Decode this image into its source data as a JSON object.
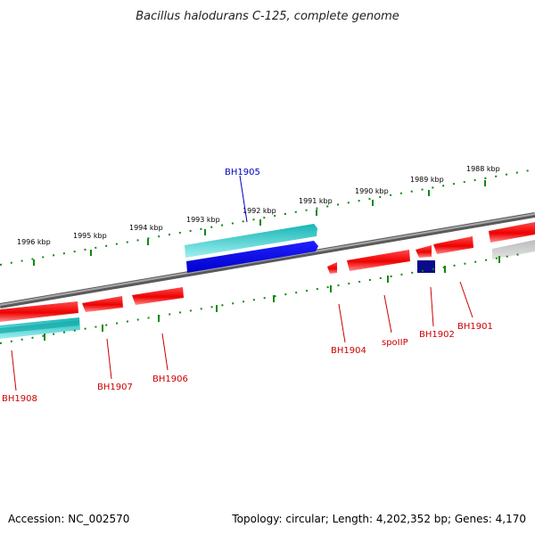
{
  "title": "Bacillus halodurans C-125, complete genome",
  "footer": {
    "accession": "Accession: NC_002570",
    "topology": "Topology: circular; Length: 4,202,352 bp; Genes: 4,170"
  },
  "scale_labels": [
    "1988 kbp",
    "1989 kbp",
    "1990 kbp",
    "1991 kbp",
    "1992 kbp",
    "1993 kbp",
    "1994 kbp",
    "1995 kbp",
    "1996 kbp"
  ],
  "gene_labels": [
    {
      "name": "BH1905",
      "color": "#0000c0"
    },
    {
      "name": "BH1901",
      "color": "#cc0000"
    },
    {
      "name": "BH1902",
      "color": "#cc0000"
    },
    {
      "name": "spoIIP",
      "color": "#cc0000"
    },
    {
      "name": "BH1904",
      "color": "#cc0000"
    },
    {
      "name": "BH1906",
      "color": "#cc0000"
    },
    {
      "name": "BH1907",
      "color": "#cc0000"
    },
    {
      "name": "BH1908",
      "color": "#cc0000"
    }
  ],
  "colors": {
    "forward_gene": "#ff0000",
    "reverse_gene": "#ff0000",
    "highlight_gene": "#0000ee",
    "highlight_shadow": "#19c8c8",
    "backbone": "#888888",
    "tick": "#118811"
  }
}
